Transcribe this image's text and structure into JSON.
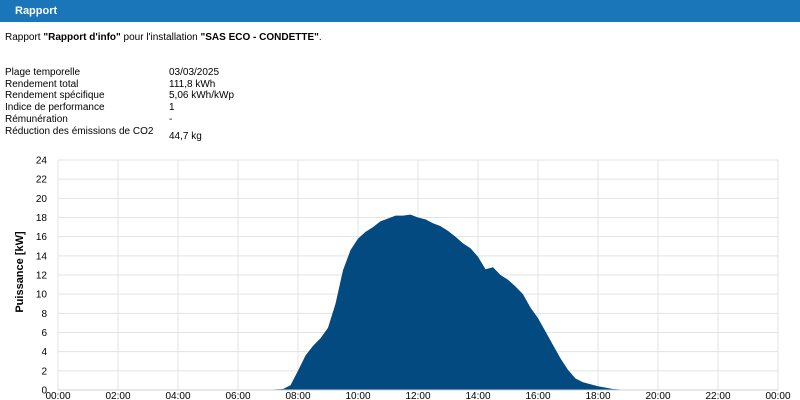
{
  "header": {
    "title": "Rapport"
  },
  "report": {
    "prefix": "Rapport ",
    "name": "\"Rapport d'info\"",
    "middle": " pour l'installation ",
    "installation": "\"SAS ECO - CONDETTE\"",
    "suffix": "."
  },
  "info": [
    {
      "label": "Plage temporelle",
      "value": "03/03/2025"
    },
    {
      "label": "Rendement total",
      "value": "111,8 kWh"
    },
    {
      "label": "Rendement spécifique",
      "value": "5,06 kWh/kWp"
    },
    {
      "label": "Indice de performance",
      "value": "1"
    },
    {
      "label": "Rémunération",
      "value": "-"
    },
    {
      "label": "Réduction des émissions de CO2",
      "value": "44,7 kg"
    }
  ],
  "colors": {
    "header": "#1b75b9",
    "area": "#034a80"
  },
  "chart_data": {
    "type": "area",
    "title": "",
    "ylabel": "Puissance [kW]",
    "xlabel": "",
    "ylim": [
      0,
      24
    ],
    "xlim": [
      "00:00",
      "24:00"
    ],
    "x_ticks": [
      "00:00",
      "02:00",
      "04:00",
      "06:00",
      "08:00",
      "10:00",
      "12:00",
      "14:00",
      "16:00",
      "18:00",
      "20:00",
      "22:00",
      "00:00"
    ],
    "y_ticks": [
      0,
      2,
      4,
      6,
      8,
      10,
      12,
      14,
      16,
      18,
      20,
      22,
      24
    ],
    "grid": true,
    "series": [
      {
        "name": "",
        "x": [
          "06:48",
          "07:30",
          "07:45",
          "08:00",
          "08:15",
          "08:30",
          "08:45",
          "09:00",
          "09:15",
          "09:30",
          "09:45",
          "10:00",
          "10:15",
          "10:30",
          "10:45",
          "11:00",
          "11:15",
          "11:30",
          "11:45",
          "12:00",
          "12:15",
          "12:30",
          "12:45",
          "13:00",
          "13:15",
          "13:30",
          "13:45",
          "14:00",
          "14:15",
          "14:30",
          "14:45",
          "15:00",
          "15:15",
          "15:30",
          "15:45",
          "16:00",
          "16:15",
          "16:30",
          "16:45",
          "17:00",
          "17:15",
          "17:30",
          "17:45",
          "18:00",
          "18:30",
          "19:00",
          "19:15"
        ],
        "values": [
          0,
          0.1,
          0.5,
          2.0,
          3.6,
          4.6,
          5.4,
          6.5,
          9.0,
          12.5,
          14.6,
          15.8,
          16.5,
          17.0,
          17.6,
          17.9,
          18.2,
          18.2,
          18.3,
          18.0,
          17.8,
          17.4,
          17.1,
          16.6,
          16.0,
          15.3,
          14.8,
          13.9,
          12.6,
          12.8,
          12.0,
          11.5,
          10.8,
          10.0,
          8.6,
          7.5,
          6.1,
          4.7,
          3.3,
          2.1,
          1.2,
          0.8,
          0.6,
          0.4,
          0.1,
          0.0,
          0
        ]
      }
    ]
  }
}
